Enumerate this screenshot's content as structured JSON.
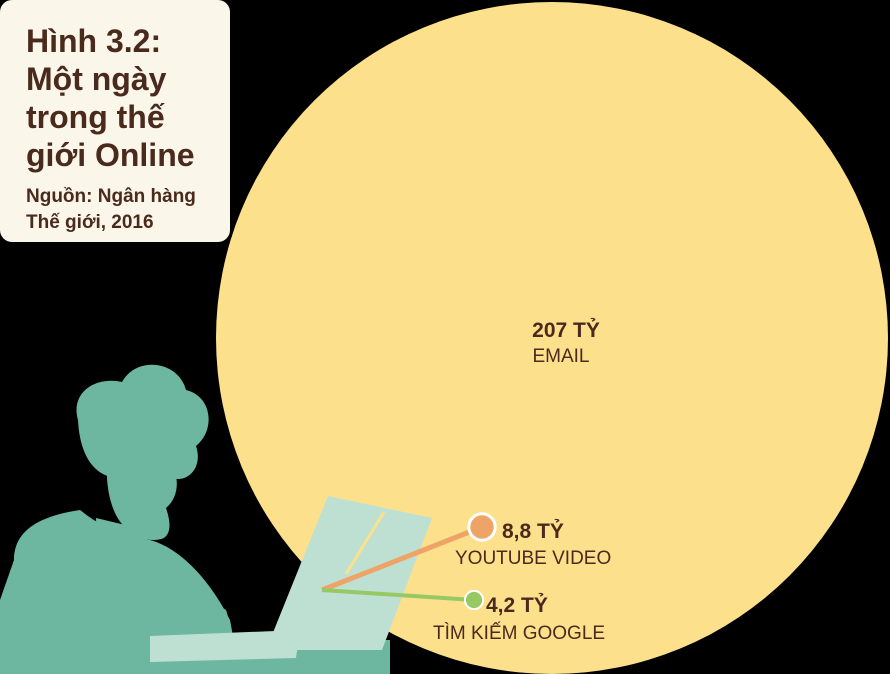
{
  "figure": {
    "title": "Hình 3.2: Một ngày trong thế giới Online",
    "source": "Nguồn: Ngân hàng Thế giới, 2016"
  },
  "colors": {
    "background": "#000000",
    "card": "#fbf6ea",
    "text": "#4a2a1c",
    "email": "#fde08c",
    "youtube": "#eda466",
    "google": "#96c963",
    "illustration": "#6db7a0",
    "illustration_light": "#bde0d3"
  },
  "chart_data": {
    "type": "bubble",
    "unit": "TỶ",
    "items": [
      {
        "name": "EMAIL",
        "value": 207,
        "value_label": "207 TỶ",
        "color": "#fde08c"
      },
      {
        "name": "YOUTUBE VIDEO",
        "value": 8.8,
        "value_label": "8,8 TỶ",
        "color": "#eda466"
      },
      {
        "name": "TÌM KIẾM GOOGLE",
        "value": 4.2,
        "value_label": "4,2 TỶ",
        "color": "#96c963"
      }
    ]
  }
}
